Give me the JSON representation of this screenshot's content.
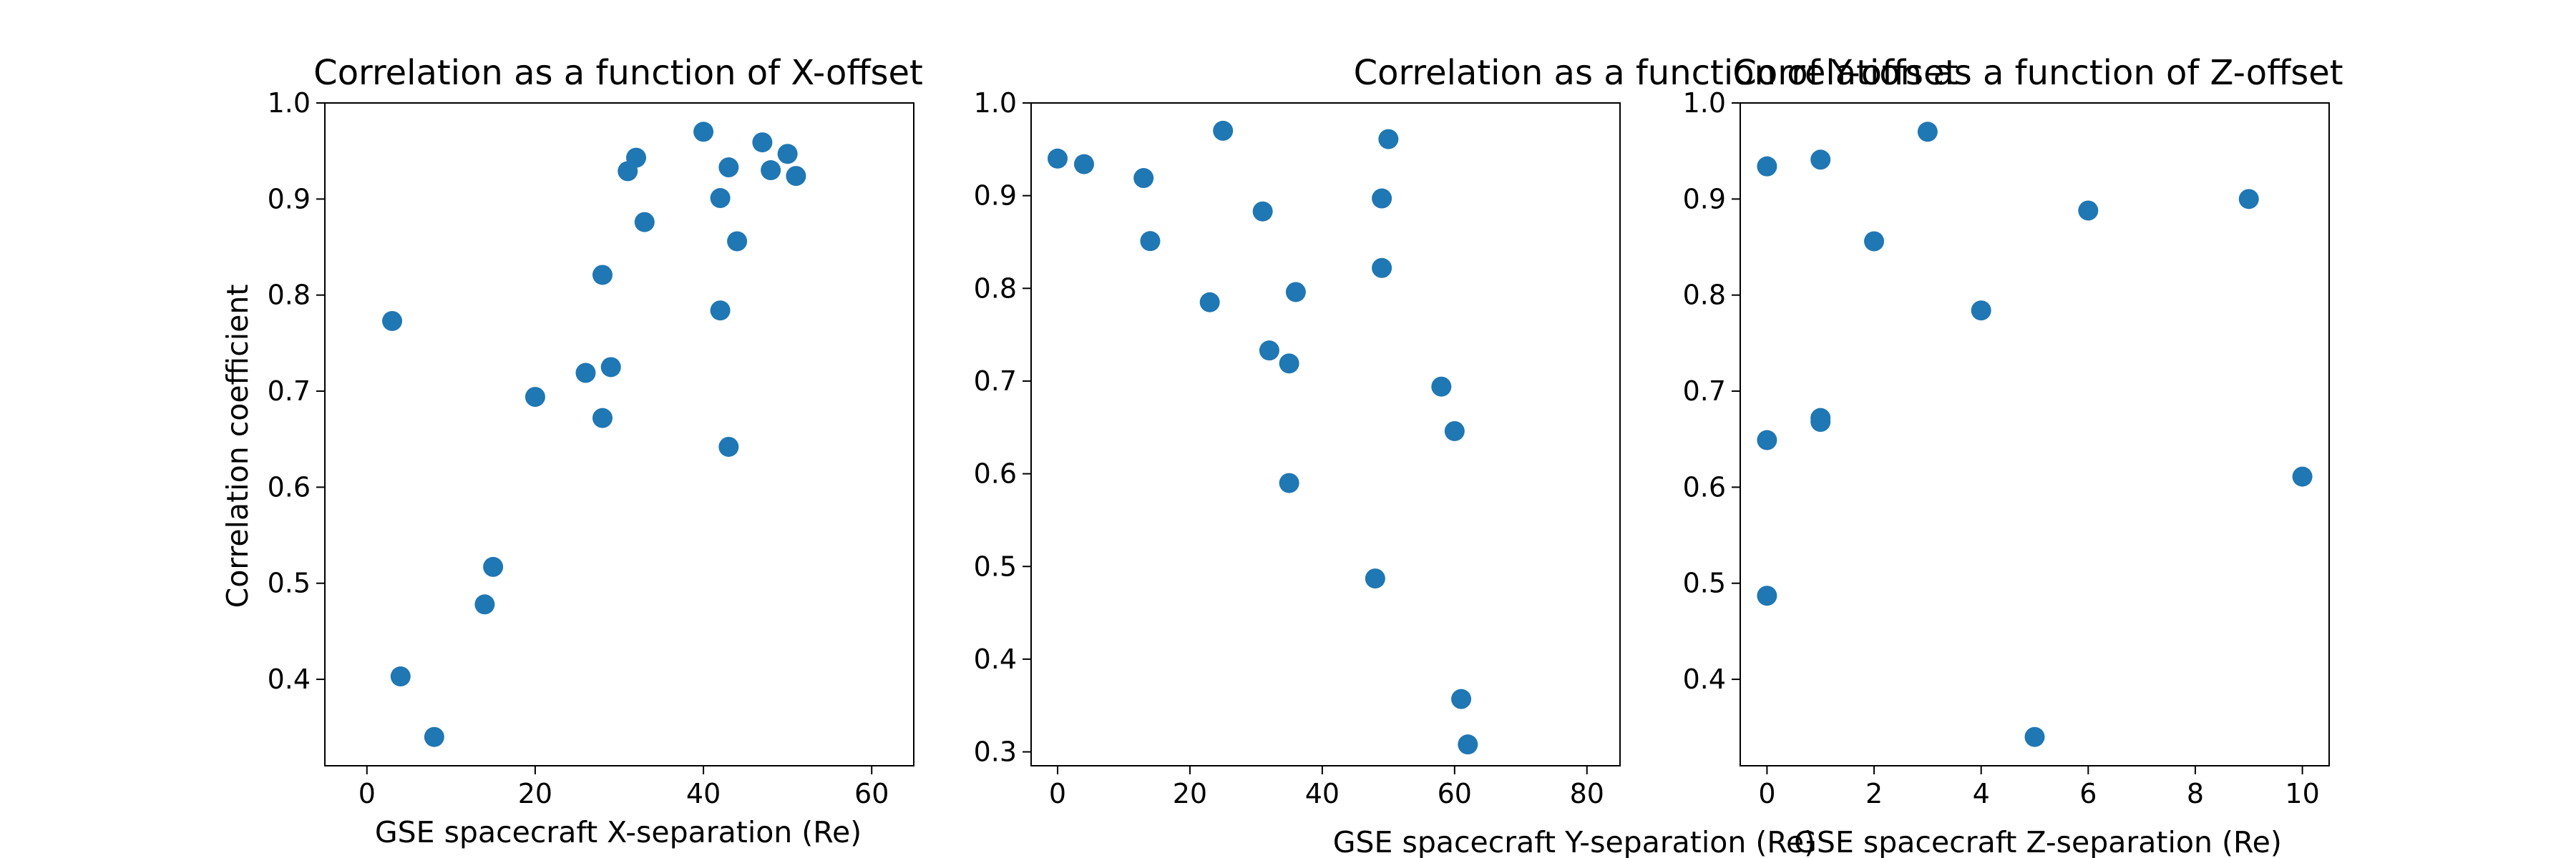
{
  "chart_data": [
    {
      "type": "scatter",
      "title": "Correlation as a function of X-offset",
      "xlabel": "GSE spacecraft X-separation (Re)",
      "ylabel": "Correlation coefficient",
      "xlim": [
        -5,
        65
      ],
      "ylim": [
        0.31,
        1.0
      ],
      "xticks": [
        0,
        20,
        40,
        60
      ],
      "yticks": [
        0.4,
        0.5,
        0.6,
        0.7,
        0.8,
        0.9,
        1.0
      ],
      "xtick_labels": [
        "0",
        "20",
        "40",
        "60"
      ],
      "ytick_labels": [
        "0.4",
        "0.5",
        "0.6",
        "0.7",
        "0.8",
        "0.9",
        "1.0"
      ],
      "grid": false,
      "color": "#1f77b4",
      "points": [
        {
          "x": 3,
          "y": 0.773
        },
        {
          "x": 4,
          "y": 0.403
        },
        {
          "x": 8,
          "y": 0.34
        },
        {
          "x": 14,
          "y": 0.478
        },
        {
          "x": 15,
          "y": 0.517
        },
        {
          "x": 20,
          "y": 0.694
        },
        {
          "x": 26,
          "y": 0.719
        },
        {
          "x": 28,
          "y": 0.821
        },
        {
          "x": 28,
          "y": 0.672
        },
        {
          "x": 29,
          "y": 0.725
        },
        {
          "x": 31,
          "y": 0.929
        },
        {
          "x": 32,
          "y": 0.943
        },
        {
          "x": 33,
          "y": 0.876
        },
        {
          "x": 40,
          "y": 0.97
        },
        {
          "x": 42,
          "y": 0.901
        },
        {
          "x": 42,
          "y": 0.784
        },
        {
          "x": 43,
          "y": 0.933
        },
        {
          "x": 43,
          "y": 0.642
        },
        {
          "x": 44,
          "y": 0.856
        },
        {
          "x": 47,
          "y": 0.959
        },
        {
          "x": 48,
          "y": 0.93
        },
        {
          "x": 50,
          "y": 0.947
        },
        {
          "x": 51,
          "y": 0.924
        }
      ]
    },
    {
      "type": "scatter",
      "title": "Correlation as a function of Y-offset",
      "xlabel": "GSE spacecraft Y-separation (Re)",
      "ylabel": "",
      "xlim": [
        -4,
        85
      ],
      "ylim": [
        0.285,
        1.0
      ],
      "xticks": [
        0,
        20,
        40,
        60,
        80
      ],
      "yticks": [
        0.3,
        0.4,
        0.5,
        0.6,
        0.7,
        0.8,
        0.9,
        1.0
      ],
      "xtick_labels": [
        "0",
        "20",
        "40",
        "60",
        "80"
      ],
      "ytick_labels": [
        "0.3",
        "0.4",
        "0.5",
        "0.6",
        "0.7",
        "0.8",
        "0.9",
        "1.0"
      ],
      "grid": false,
      "color": "#1f77b4",
      "points": [
        {
          "x": 0,
          "y": 0.94
        },
        {
          "x": 4,
          "y": 0.934
        },
        {
          "x": 13,
          "y": 0.919
        },
        {
          "x": 14,
          "y": 0.851
        },
        {
          "x": 23,
          "y": 0.785
        },
        {
          "x": 25,
          "y": 0.97
        },
        {
          "x": 31,
          "y": 0.883
        },
        {
          "x": 32,
          "y": 0.733
        },
        {
          "x": 35,
          "y": 0.719
        },
        {
          "x": 35,
          "y": 0.59
        },
        {
          "x": 36,
          "y": 0.796
        },
        {
          "x": 48,
          "y": 0.487
        },
        {
          "x": 49,
          "y": 0.897
        },
        {
          "x": 49,
          "y": 0.822
        },
        {
          "x": 50,
          "y": 0.961
        },
        {
          "x": 58,
          "y": 0.694
        },
        {
          "x": 60,
          "y": 0.646
        },
        {
          "x": 61,
          "y": 0.357
        },
        {
          "x": 62,
          "y": 0.308
        }
      ]
    },
    {
      "type": "scatter",
      "title": "Correlation as a function of Z-offset",
      "xlabel": "GSE spacecraft Z-separation (Re)",
      "ylabel": "",
      "xlim": [
        -0.5,
        10.5
      ],
      "ylim": [
        0.31,
        1.0
      ],
      "xticks": [
        0,
        2,
        4,
        6,
        8,
        10
      ],
      "yticks": [
        0.4,
        0.5,
        0.6,
        0.7,
        0.8,
        0.9,
        1.0
      ],
      "xtick_labels": [
        "0",
        "2",
        "4",
        "6",
        "8",
        "10"
      ],
      "ytick_labels": [
        "0.4",
        "0.5",
        "0.6",
        "0.7",
        "0.8",
        "0.9",
        "1.0"
      ],
      "grid": false,
      "color": "#1f77b4",
      "points": [
        {
          "x": 0,
          "y": 0.934
        },
        {
          "x": 0,
          "y": 0.649
        },
        {
          "x": 0,
          "y": 0.487
        },
        {
          "x": 1,
          "y": 0.941
        },
        {
          "x": 1,
          "y": 0.672
        },
        {
          "x": 1,
          "y": 0.668
        },
        {
          "x": 2,
          "y": 0.856
        },
        {
          "x": 3,
          "y": 0.97
        },
        {
          "x": 4,
          "y": 0.784
        },
        {
          "x": 5,
          "y": 0.34
        },
        {
          "x": 6,
          "y": 0.888
        },
        {
          "x": 9,
          "y": 0.9
        },
        {
          "x": 10,
          "y": 0.611
        }
      ]
    }
  ]
}
